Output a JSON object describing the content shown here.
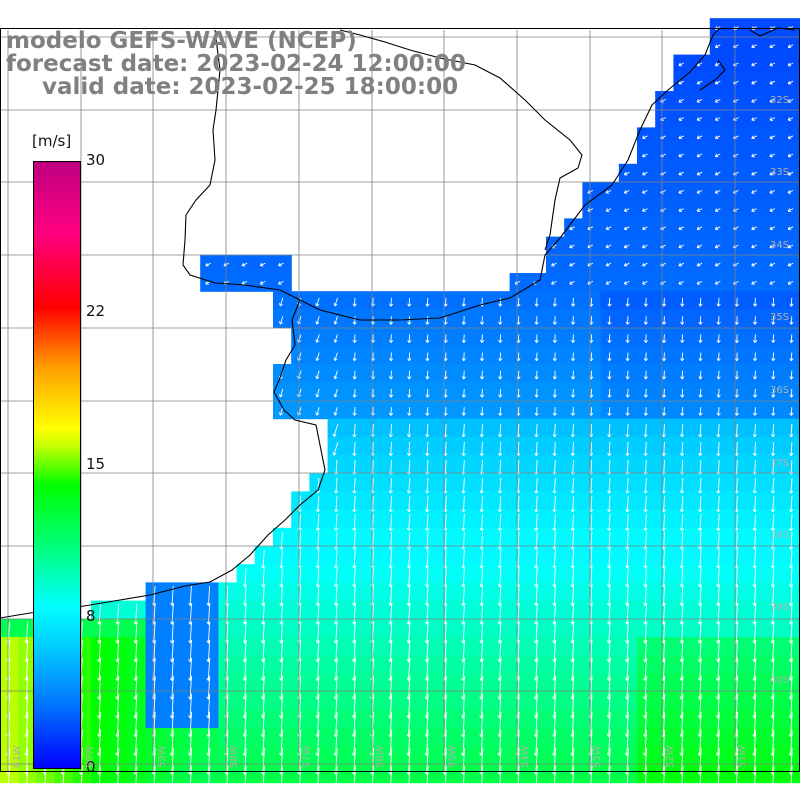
{
  "title": {
    "model": "modelo GEFS-WAVE (NCEP)",
    "forecast": "forecast date: 2023-02-24 12:00:00",
    "valid": "valid date: 2023-02-25 18:00:00"
  },
  "colorbar": {
    "unit": "[m/s]",
    "ticks": [
      "30",
      "22",
      "15",
      "8",
      "0"
    ],
    "tick_values": [
      30,
      22,
      15,
      8,
      0
    ],
    "range": [
      0,
      30
    ]
  },
  "lat_labels": [
    "32S",
    "33S",
    "34S",
    "35S",
    "36S",
    "37S",
    "38S",
    "39S",
    "40S"
  ],
  "lon_labels": [
    "61W",
    "60W",
    "59W",
    "58W",
    "57W",
    "56W",
    "55W",
    "54W",
    "53W",
    "52W",
    "51W"
  ],
  "colors": {
    "land": "#ffffff",
    "grid": "#808080",
    "coast": "#000000",
    "arrows": "#ffffff",
    "title": "#808080"
  }
}
